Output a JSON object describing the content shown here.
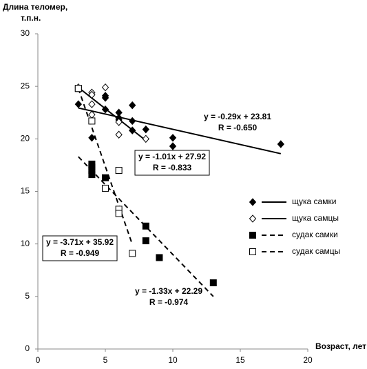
{
  "chart_data": {
    "type": "scatter",
    "ylabel": [
      "Длина теломер,",
      "т.п.н."
    ],
    "xlabel": "Возраст, лет",
    "xlim": [
      0,
      20
    ],
    "xticks": [
      0,
      5,
      10,
      15,
      20
    ],
    "ylim": [
      0,
      30
    ],
    "yticks": [
      0,
      5,
      10,
      15,
      20,
      25,
      30
    ],
    "grid": false,
    "legend": "right",
    "series": [
      {
        "name": "щука самки",
        "marker": "diamond",
        "filled": true,
        "color": "#000000",
        "dash": false,
        "x": [
          3,
          4,
          5,
          5,
          5,
          6,
          6,
          6,
          7,
          7,
          7,
          8,
          10,
          10,
          18
        ],
        "values": [
          23.3,
          20.1,
          24.1,
          23.9,
          22.8,
          22.5,
          22.0,
          21.8,
          23.2,
          21.7,
          20.8,
          20.9,
          20.1,
          19.3,
          19.5
        ],
        "trend": {
          "slope": -0.29,
          "intercept": 23.81,
          "x": [
            3,
            18
          ]
        },
        "equation": "y = -0.29x + 23.81",
        "r_label": "R = -0.650"
      },
      {
        "name": "щука самцы",
        "marker": "diamond",
        "filled": false,
        "color": "#000000",
        "dash": false,
        "x": [
          3,
          4,
          4,
          4,
          4,
          5,
          6,
          6,
          8
        ],
        "values": [
          24.9,
          24.4,
          24.2,
          23.3,
          22.3,
          24.9,
          21.6,
          20.4,
          20.0
        ],
        "trend": {
          "slope": -1.01,
          "intercept": 27.92,
          "x": [
            3,
            8
          ]
        },
        "equation": "y = -1.01x + 27.92",
        "r_label": "R = -0.833"
      },
      {
        "name": "судак самки",
        "marker": "square",
        "filled": true,
        "color": "#000000",
        "dash": true,
        "x": [
          3,
          4,
          4,
          4,
          4,
          5,
          8,
          8,
          9,
          13
        ],
        "values": [
          24.8,
          17.6,
          17.3,
          17.0,
          16.6,
          16.3,
          11.7,
          10.3,
          8.7,
          6.3
        ],
        "trend": {
          "slope": -1.33,
          "intercept": 22.29,
          "x": [
            3,
            13
          ]
        },
        "equation": "y = -1.33x + 22.29",
        "r_label": "R = -0.974"
      },
      {
        "name": "судак самцы",
        "marker": "square",
        "filled": false,
        "color": "#000000",
        "dash": true,
        "x": [
          3,
          4,
          5,
          6,
          6,
          6,
          7
        ],
        "values": [
          24.8,
          21.7,
          15.3,
          17.0,
          13.3,
          12.9,
          9.1
        ],
        "trend": {
          "slope": -3.71,
          "intercept": 35.92,
          "x": [
            3,
            7
          ]
        },
        "equation": "y = -3.71x + 35.92",
        "r_label": "R = -0.949"
      }
    ]
  }
}
